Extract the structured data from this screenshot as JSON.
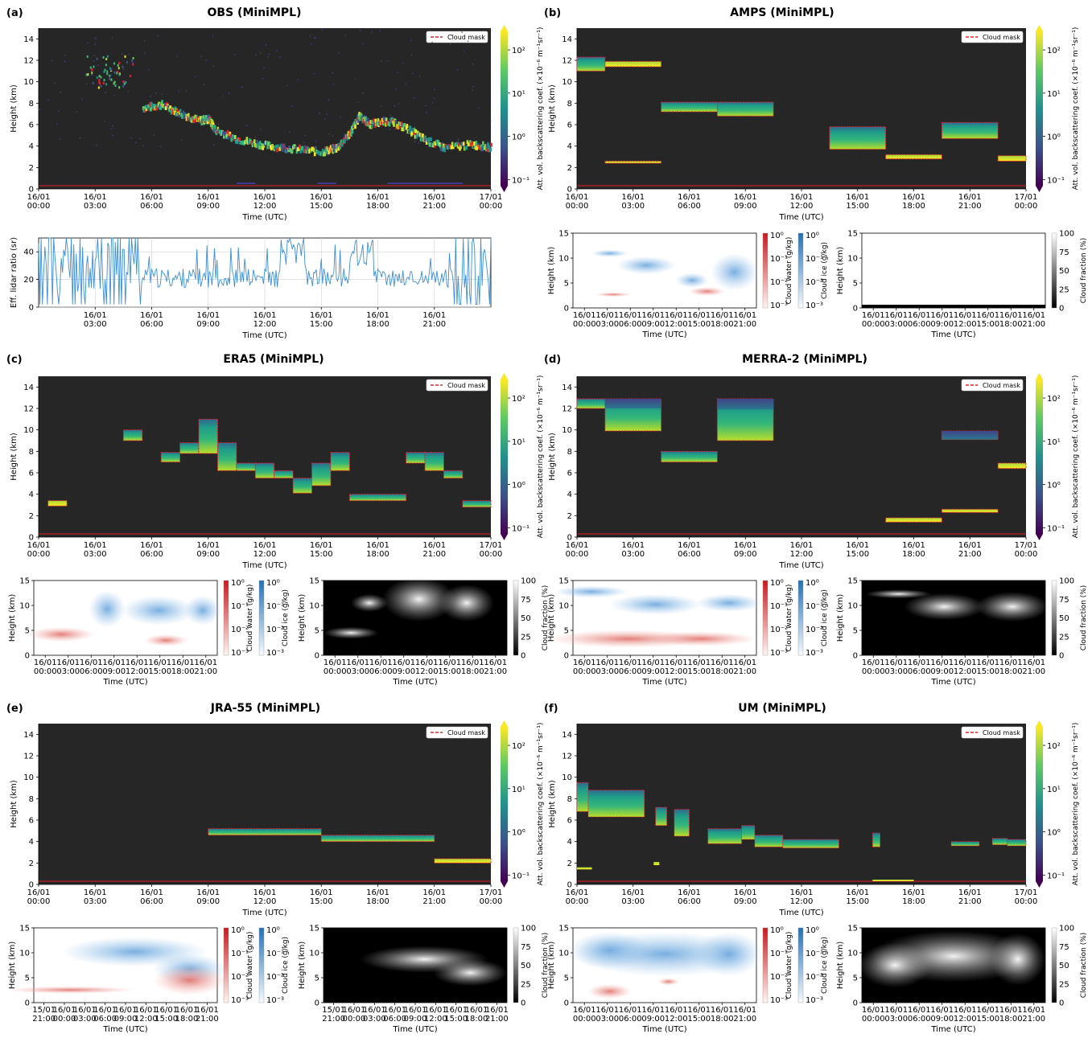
{
  "figure": {
    "hours": [
      0,
      3,
      6,
      9,
      12,
      15,
      18,
      21,
      24
    ],
    "main_x_labels": [
      [
        "16/01",
        "00:00"
      ],
      [
        "16/01",
        "03:00"
      ],
      [
        "16/01",
        "06:00"
      ],
      [
        "16/01",
        "09:00"
      ],
      [
        "16/01",
        "12:00"
      ],
      [
        "16/01",
        "15:00"
      ],
      [
        "16/01",
        "18:00"
      ],
      [
        "16/01",
        "21:00"
      ],
      [
        "17/01",
        "00:00"
      ]
    ],
    "small_x_labels": [
      [
        "16/01",
        "00:00"
      ],
      [
        "16/01",
        "03:00"
      ],
      [
        "16/01",
        "06:00"
      ],
      [
        "16/01",
        "09:00"
      ],
      [
        "16/01",
        "12:00"
      ],
      [
        "16/01",
        "15:00"
      ],
      [
        "16/01",
        "18:00"
      ],
      [
        "16/01",
        "21:00"
      ]
    ],
    "jra_small_x_labels": [
      [
        "15/01",
        "21:00"
      ],
      [
        "16/01",
        "00:00"
      ],
      [
        "16/01",
        "03:00"
      ],
      [
        "16/01",
        "06:00"
      ],
      [
        "16/01",
        "09:00"
      ],
      [
        "16/01",
        "12:00"
      ],
      [
        "16/01",
        "15:00"
      ],
      [
        "16/01",
        "18:00"
      ],
      [
        "16/01",
        "21:00"
      ]
    ],
    "y_ticks": [
      0,
      2,
      4,
      6,
      8,
      10,
      12,
      14
    ],
    "small_y_ticks": [
      0,
      5,
      10,
      15
    ],
    "xlabel": "Time (UTC)",
    "ylabel": "Height (km)",
    "legend_label": "Cloud mask",
    "colorbar_label": "Att. vol. backscattering coef. (×10⁻⁶ m⁻¹sr⁻¹)",
    "colorbar_ticks": [
      "10²",
      "10¹",
      "10⁰",
      "10⁻¹"
    ],
    "water_label": "Cloud water (g/kg)",
    "ice_label": "Cloud ice (g/kg)",
    "wi_ticks": [
      "10⁰",
      "10⁻¹",
      "10⁻²",
      "10⁻³"
    ],
    "cf_label": "Cloud fraction (%)",
    "cf_ticks": [
      "100",
      "75",
      "50",
      "25",
      "0"
    ],
    "lidar_ratio": {
      "ylabel": "Eff. lidar ratio (sr)",
      "y_ticks": [
        0,
        20,
        40
      ],
      "x_labels": [
        [
          "16/01",
          "03:00"
        ],
        [
          "16/01",
          "06:00"
        ],
        [
          "16/01",
          "09:00"
        ],
        [
          "16/01",
          "12:00"
        ],
        [
          "16/01",
          "15:00"
        ],
        [
          "16/01",
          "18:00"
        ],
        [
          "16/01",
          "21:00"
        ]
      ]
    },
    "colors": {
      "plot_bg": "#262626",
      "lidar_line": "#3a8fd6",
      "mask": "#e8202a",
      "water": "#d9534f",
      "ice": "#5b9bd5"
    }
  },
  "panels": [
    {
      "id": "a",
      "letter": "(a)",
      "title": "OBS (MiniMPL)"
    },
    {
      "id": "b",
      "letter": "(b)",
      "title": "AMPS (MiniMPL)"
    },
    {
      "id": "c",
      "letter": "(c)",
      "title": "ERA5 (MiniMPL)"
    },
    {
      "id": "d",
      "letter": "(d)",
      "title": "MERRA-2 (MiniMPL)"
    },
    {
      "id": "e",
      "letter": "(e)",
      "title": "JRA-55 (MiniMPL)"
    },
    {
      "id": "f",
      "letter": "(f)",
      "title": "UM (MiniMPL)"
    }
  ],
  "chart_data": [
    {
      "type": "heatmap",
      "panel": "b",
      "title": "AMPS (MiniMPL)",
      "xlabel": "Time (UTC)",
      "ylabel": "Height (km)",
      "ylim": [
        0,
        15
      ],
      "xlim_hours": [
        0,
        24
      ],
      "legend": "top-right",
      "cloud_layers": [
        {
          "t0": 0,
          "t1": 1.5,
          "z0": 11,
          "z1": 12.3
        },
        {
          "t0": 1.5,
          "t1": 4.5,
          "z0": 11.4,
          "z1": 11.9
        },
        {
          "t0": 1.5,
          "t1": 4.5,
          "z0": 2.4,
          "z1": 2.6
        },
        {
          "t0": 4.5,
          "t1": 7.5,
          "z0": 7.2,
          "z1": 8.1
        },
        {
          "t0": 7.5,
          "t1": 10.5,
          "z0": 6.8,
          "z1": 8.1
        },
        {
          "t0": 13.5,
          "t1": 16.5,
          "z0": 3.7,
          "z1": 5.8
        },
        {
          "t0": 16.5,
          "t1": 19.5,
          "z0": 2.8,
          "z1": 3.2
        },
        {
          "t0": 19.5,
          "t1": 22.5,
          "z0": 4.7,
          "z1": 6.2
        },
        {
          "t0": 22.5,
          "t1": 24,
          "z0": 2.6,
          "z1": 3.1
        }
      ]
    },
    {
      "type": "heatmap",
      "panel": "c",
      "title": "ERA5 (MiniMPL)",
      "xlabel": "Time (UTC)",
      "ylabel": "Height (km)",
      "ylim": [
        0,
        15
      ],
      "xlim_hours": [
        0,
        24
      ],
      "legend": "top-right",
      "cloud_layers": [
        {
          "t0": 0.5,
          "t1": 1.5,
          "z0": 2.9,
          "z1": 3.4
        },
        {
          "t0": 4.5,
          "t1": 5.5,
          "z0": 9.0,
          "z1": 10.0
        },
        {
          "t0": 6.5,
          "t1": 7.5,
          "z0": 7.0,
          "z1": 7.9
        },
        {
          "t0": 7.5,
          "t1": 8.5,
          "z0": 7.8,
          "z1": 8.8
        },
        {
          "t0": 8.5,
          "t1": 9.5,
          "z0": 7.8,
          "z1": 11.0
        },
        {
          "t0": 9.5,
          "t1": 10.5,
          "z0": 6.2,
          "z1": 8.8
        },
        {
          "t0": 10.5,
          "t1": 11.5,
          "z0": 6.2,
          "z1": 6.9
        },
        {
          "t0": 11.5,
          "t1": 12.5,
          "z0": 5.5,
          "z1": 6.9
        },
        {
          "t0": 12.5,
          "t1": 13.5,
          "z0": 5.5,
          "z1": 6.2
        },
        {
          "t0": 13.5,
          "t1": 14.5,
          "z0": 4.1,
          "z1": 5.5
        },
        {
          "t0": 14.5,
          "t1": 15.5,
          "z0": 4.8,
          "z1": 6.9
        },
        {
          "t0": 15.5,
          "t1": 16.5,
          "z0": 6.2,
          "z1": 7.9
        },
        {
          "t0": 16.5,
          "t1": 19.5,
          "z0": 3.4,
          "z1": 4.0
        },
        {
          "t0": 19.5,
          "t1": 20.5,
          "z0": 6.9,
          "z1": 7.9
        },
        {
          "t0": 20.5,
          "t1": 21.5,
          "z0": 6.2,
          "z1": 7.9
        },
        {
          "t0": 21.5,
          "t1": 22.5,
          "z0": 5.5,
          "z1": 6.2
        },
        {
          "t0": 22.5,
          "t1": 24,
          "z0": 2.8,
          "z1": 3.4
        }
      ]
    },
    {
      "type": "heatmap",
      "panel": "d",
      "title": "MERRA-2 (MiniMPL)",
      "xlabel": "Time (UTC)",
      "ylabel": "Height (km)",
      "ylim": [
        0,
        15
      ],
      "xlim_hours": [
        0,
        24
      ],
      "legend": "top-right",
      "cloud_layers": [
        {
          "t0": 0,
          "t1": 1.5,
          "z0": 12.0,
          "z1": 12.9
        },
        {
          "t0": 1.5,
          "t1": 4.5,
          "z0": 9.9,
          "z1": 12.9
        },
        {
          "t0": 4.5,
          "t1": 7.5,
          "z0": 7.0,
          "z1": 8.0
        },
        {
          "t0": 7.5,
          "t1": 10.5,
          "z0": 9.0,
          "z1": 12.9
        },
        {
          "t0": 16.5,
          "t1": 19.5,
          "z0": 1.4,
          "z1": 1.8
        },
        {
          "t0": 19.5,
          "t1": 22.5,
          "z0": 9.1,
          "z1": 9.9
        },
        {
          "t0": 19.5,
          "t1": 22.5,
          "z0": 2.3,
          "z1": 2.6
        },
        {
          "t0": 22.5,
          "t1": 24,
          "z0": 6.4,
          "z1": 6.9
        }
      ]
    },
    {
      "type": "heatmap",
      "panel": "e",
      "title": "JRA-55 (MiniMPL)",
      "xlabel": "Time (UTC)",
      "ylabel": "Height (km)",
      "ylim": [
        0,
        15
      ],
      "xlim_hours": [
        0,
        24
      ],
      "legend": "top-right",
      "cloud_layers": [
        {
          "t0": 9,
          "t1": 15,
          "z0": 4.6,
          "z1": 5.2
        },
        {
          "t0": 15,
          "t1": 21,
          "z0": 4.0,
          "z1": 4.6
        },
        {
          "t0": 21,
          "t1": 24,
          "z0": 2.0,
          "z1": 2.4
        }
      ]
    }
  ]
}
